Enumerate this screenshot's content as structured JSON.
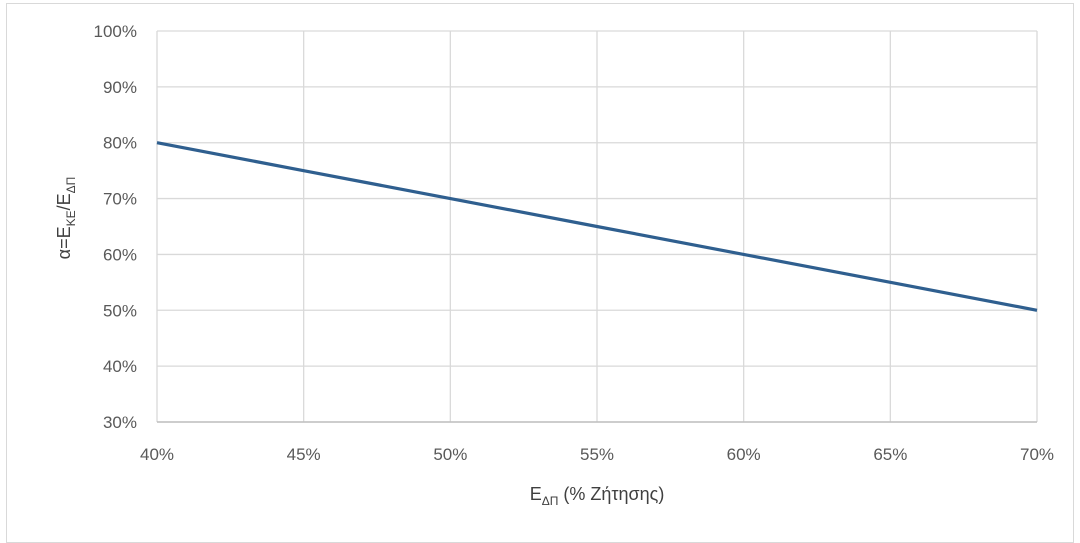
{
  "chart_data": {
    "type": "line",
    "title": "",
    "xlabel": {
      "main": "E",
      "sub": "ΔΠ",
      "suffix": " (% Ζήτησης)"
    },
    "ylabel": {
      "prefix": "α=E",
      "sub1": "ΚΕ",
      "mid": "/E",
      "sub2": "ΔΠ"
    },
    "xlim": [
      0.4,
      0.7
    ],
    "ylim": [
      0.3,
      1.0
    ],
    "x_ticks": [
      0.4,
      0.45,
      0.5,
      0.55,
      0.6,
      0.65,
      0.7
    ],
    "y_ticks": [
      0.3,
      0.4,
      0.5,
      0.6,
      0.7,
      0.8,
      0.9,
      1.0
    ],
    "x_tick_labels": [
      "40%",
      "45%",
      "50%",
      "55%",
      "60%",
      "65%",
      "70%"
    ],
    "y_tick_labels": [
      "30%",
      "40%",
      "50%",
      "60%",
      "70%",
      "80%",
      "90%",
      "100%"
    ],
    "grid": true,
    "legend": "none",
    "series": [
      {
        "color": "#2f5f8f",
        "x": [
          0.4,
          0.45,
          0.5,
          0.55,
          0.6,
          0.65,
          0.7
        ],
        "y": [
          0.8,
          0.75,
          0.7,
          0.65,
          0.6,
          0.55,
          0.5
        ]
      }
    ]
  }
}
